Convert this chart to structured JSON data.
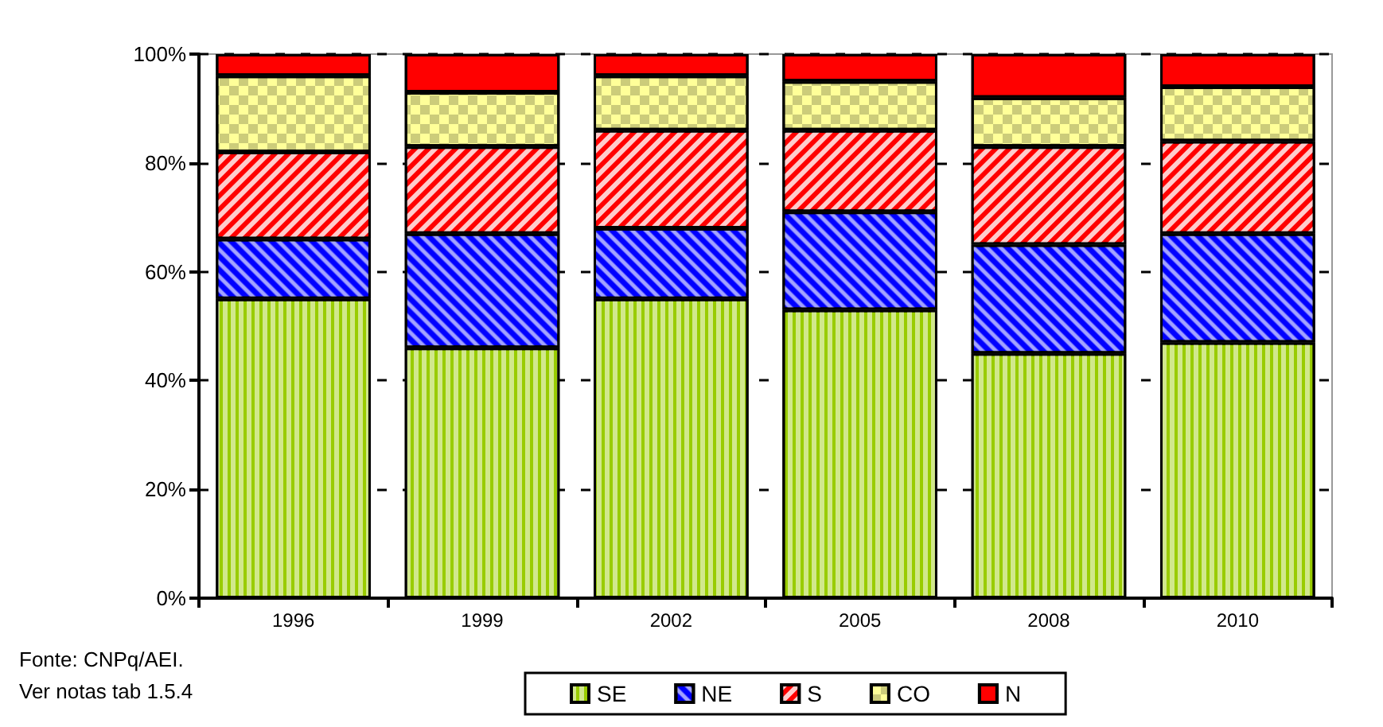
{
  "chart_data": {
    "type": "bar",
    "stacked": true,
    "categories": [
      "1996",
      "1999",
      "2002",
      "2005",
      "2008",
      "2010"
    ],
    "series": [
      {
        "name": "SE",
        "color": "#99cc00",
        "values": [
          55,
          46,
          55,
          53,
          45,
          47
        ]
      },
      {
        "name": "NE",
        "color": "#0000ff",
        "values": [
          11,
          21,
          13,
          18,
          20,
          20
        ]
      },
      {
        "name": "S",
        "color": "#ff0000",
        "values": [
          16,
          16,
          18,
          15,
          18,
          17
        ]
      },
      {
        "name": "CO",
        "color": "#ffff99",
        "values": [
          14,
          10,
          10,
          9,
          9,
          10
        ]
      },
      {
        "name": "N",
        "color": "#ff0000",
        "values": [
          4,
          7,
          4,
          5,
          8,
          6
        ]
      }
    ],
    "ylim": [
      0,
      100
    ],
    "yticks": [
      {
        "value": 0,
        "label": "0%"
      },
      {
        "value": 20,
        "label": "20%"
      },
      {
        "value": 40,
        "label": "40%"
      },
      {
        "value": 60,
        "label": "60%"
      },
      {
        "value": 80,
        "label": "80%"
      },
      {
        "value": 100,
        "label": "100%"
      }
    ],
    "grid": "y",
    "legend": "bottom",
    "annotations": [
      "Fonte: CNPq/AEI.",
      "Ver notas tab 1.5.4"
    ]
  }
}
